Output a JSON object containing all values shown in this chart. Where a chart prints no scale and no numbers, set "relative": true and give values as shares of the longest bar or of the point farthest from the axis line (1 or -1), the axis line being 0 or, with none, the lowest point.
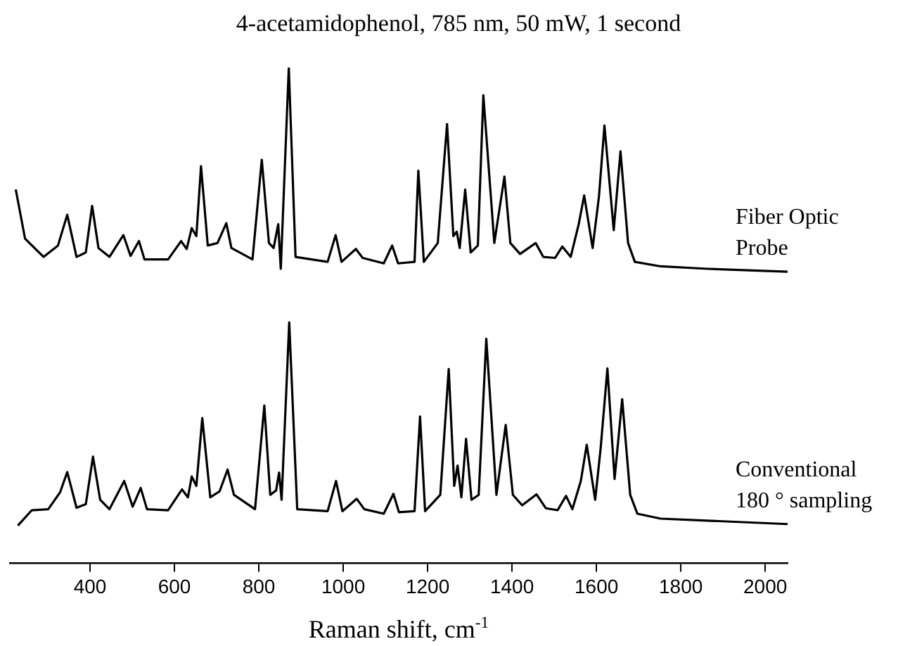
{
  "chart_data": {
    "type": "line",
    "title": "4-acetamidophenol, 785 nm, 50 mW, 1 second",
    "xlabel": "Raman shift, cm$^{-1}$",
    "relative": true,
    "xlim": [
      210,
      2053
    ],
    "xticks": [
      400,
      600,
      800,
      1000,
      1200,
      1400,
      1600,
      1800,
      2000
    ],
    "tick_labels": "x",
    "grid": false,
    "legend": false,
    "marker": "none",
    "line_style": "solid",
    "series": [
      {
        "name": "Fiber Optic Probe",
        "color": "#000000",
        "x": [
          224,
          246,
          290,
          324,
          346,
          368,
          390,
          405,
          420,
          446,
          479,
          496,
          516,
          529,
          585,
          616,
          629,
          641,
          652,
          663,
          679,
          702,
          723,
          735,
          785,
          807,
          824,
          835,
          846,
          852,
          871,
          887,
          963,
          982,
          996,
          1030,
          1046,
          1096,
          1116,
          1130,
          1169,
          1178,
          1191,
          1224,
          1246,
          1261,
          1269,
          1276,
          1289,
          1302,
          1319,
          1332,
          1358,
          1382,
          1396,
          1419,
          1456,
          1474,
          1502,
          1519,
          1539,
          1558,
          1571,
          1591,
          1606,
          1619,
          1641,
          1657,
          1675,
          1691,
          1752,
          1863,
          2053
        ],
        "values": [
          0.754,
          0.655,
          0.618,
          0.641,
          0.703,
          0.618,
          0.627,
          0.721,
          0.636,
          0.618,
          0.662,
          0.62,
          0.65,
          0.613,
          0.613,
          0.65,
          0.634,
          0.676,
          0.66,
          0.801,
          0.641,
          0.646,
          0.686,
          0.636,
          0.613,
          0.814,
          0.646,
          0.636,
          0.684,
          0.594,
          1,
          0.618,
          0.608,
          0.662,
          0.608,
          0.634,
          0.616,
          0.605,
          0.641,
          0.605,
          0.608,
          0.792,
          0.608,
          0.646,
          0.886,
          0.66,
          0.669,
          0.636,
          0.754,
          0.627,
          0.641,
          0.944,
          0.646,
          0.78,
          0.646,
          0.624,
          0.646,
          0.618,
          0.616,
          0.639,
          0.618,
          0.684,
          0.742,
          0.636,
          0.74,
          0.883,
          0.672,
          0.831,
          0.646,
          0.608,
          0.599,
          0.594,
          0.588
        ]
      },
      {
        "name": "Conventional 180 ° sampling",
        "color": "#000000",
        "x": [
          229,
          262,
          301,
          329,
          346,
          368,
          390,
          407,
          424,
          446,
          481,
          501,
          520,
          535,
          585,
          618,
          632,
          641,
          652,
          666,
          685,
          707,
          726,
          741,
          791,
          813,
          827,
          841,
          848,
          854,
          872,
          891,
          963,
          983,
          998,
          1032,
          1050,
          1096,
          1119,
          1132,
          1169,
          1182,
          1194,
          1230,
          1250,
          1263,
          1271,
          1280,
          1291,
          1304,
          1321,
          1339,
          1363,
          1385,
          1402,
          1424,
          1458,
          1480,
          1508,
          1528,
          1543,
          1563,
          1577,
          1597,
          1610,
          1626,
          1643,
          1661,
          1680,
          1697,
          1752,
          1863,
          2053
        ],
        "values": [
          0.076,
          0.107,
          0.109,
          0.143,
          0.184,
          0.112,
          0.119,
          0.215,
          0.128,
          0.109,
          0.166,
          0.114,
          0.152,
          0.109,
          0.107,
          0.149,
          0.133,
          0.175,
          0.156,
          0.293,
          0.133,
          0.145,
          0.189,
          0.138,
          0.109,
          0.318,
          0.138,
          0.147,
          0.183,
          0.128,
          0.486,
          0.109,
          0.105,
          0.166,
          0.105,
          0.13,
          0.109,
          0.1,
          0.14,
          0.103,
          0.105,
          0.296,
          0.105,
          0.138,
          0.392,
          0.156,
          0.197,
          0.133,
          0.251,
          0.128,
          0.138,
          0.453,
          0.138,
          0.279,
          0.138,
          0.117,
          0.139,
          0.111,
          0.107,
          0.136,
          0.109,
          0.166,
          0.239,
          0.128,
          0.232,
          0.393,
          0.17,
          0.331,
          0.138,
          0.1,
          0.09,
          0.086,
          0.079
        ]
      }
    ]
  }
}
